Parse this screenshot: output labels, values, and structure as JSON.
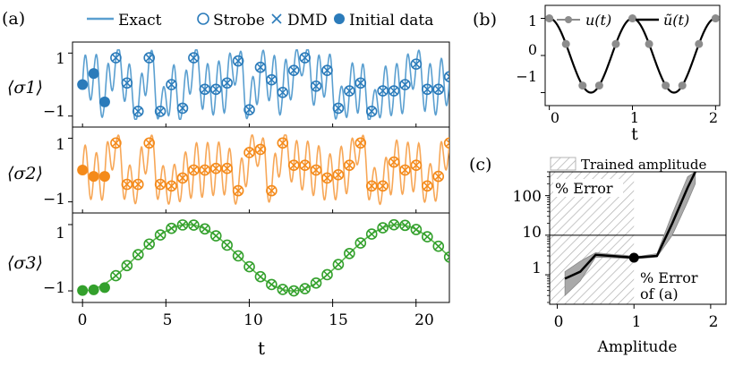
{
  "colors": {
    "sigma1": "#2b7bba",
    "sigma1_line": "#5a9fd0",
    "sigma2": "#f48a1a",
    "sigma2_line": "#f7a757",
    "sigma3": "#33a02c",
    "sigma3_line": "#5cb84d",
    "hatch": "#b4b4b4",
    "band": "#a9a9a9"
  },
  "chart_data": [
    {
      "type": "line",
      "panel_label": "(a)",
      "legend": {
        "placement": "top",
        "entries": [
          {
            "label": "Exact",
            "marker": "line"
          },
          {
            "label": "Strobe",
            "marker": "open-circle"
          },
          {
            "label": "DMD",
            "marker": "x"
          },
          {
            "label": "Initial data",
            "marker": "filled-circle"
          }
        ]
      },
      "xlabel": "t",
      "xlim": [
        -0.6,
        22
      ],
      "xticks": [
        "0",
        "5",
        "10",
        "15",
        "20"
      ],
      "subplots": [
        {
          "ylabel": "⟨σ1⟩",
          "ylim": [
            -1.35,
            1.35
          ],
          "yticks": [
            "1",
            "−1"
          ],
          "initial_data": {
            "t": [
              0,
              0.67,
              1.33
            ],
            "y": [
              0.0,
              0.35,
              -0.55
            ]
          },
          "strobe_t_start": 2.0,
          "strobe_dt": 0.667,
          "strobe_values": [
            0.85,
            0.05,
            -0.85,
            0.85,
            -0.85,
            0.0,
            -0.75,
            0.85,
            -0.15,
            -0.15,
            0.05,
            0.75,
            -0.8,
            0.55,
            0.15,
            -0.25,
            0.45,
            0.85,
            -0.05,
            0.45,
            -0.75,
            -0.2,
            0.05,
            -0.85,
            -0.2,
            -0.2,
            0.0,
            0.65,
            -0.15,
            -0.15,
            0.25,
            0.85,
            -0.65,
            0.75,
            -0.15,
            -0.15,
            0.0,
            -0.35,
            0.0,
            0.25,
            -0.35,
            0.85,
            -0.65,
            0.75,
            -0.1,
            0.05,
            -0.3,
            0.0,
            0.0,
            0.0,
            0.1,
            0.0,
            0.1,
            0.8
          ]
        },
        {
          "ylabel": "⟨σ2⟩",
          "ylim": [
            -1.35,
            1.35
          ],
          "yticks": [
            "1",
            "−1"
          ],
          "initial_data": {
            "t": [
              0,
              0.67,
              1.33
            ],
            "y": [
              0.0,
              -0.2,
              -0.2
            ]
          },
          "strobe_t_start": 2.0,
          "strobe_dt": 0.667,
          "strobe_values": [
            0.85,
            -0.45,
            -0.45,
            0.85,
            -0.45,
            -0.5,
            -0.25,
            0.0,
            0.0,
            0.05,
            0.05,
            -0.65,
            0.55,
            0.65,
            -0.65,
            0.85,
            0.15,
            0.15,
            0.0,
            -0.25,
            -0.15,
            0.15,
            0.85,
            -0.5,
            -0.5,
            0.25,
            0.0,
            0.15,
            -0.5,
            -0.2,
            0.85,
            -0.4,
            0.05,
            0.65,
            -0.4,
            0.25,
            0.0,
            -0.3,
            0.2,
            0.35,
            0.35,
            -0.2,
            0.55,
            0.25,
            -0.1,
            -0.4,
            0.3,
            0.6,
            0.1,
            0.7,
            0.2,
            -0.3,
            0.1,
            0.8
          ]
        },
        {
          "ylabel": "⟨σ3⟩",
          "ylim": [
            -1.35,
            1.35
          ],
          "yticks": [
            "1",
            "−1"
          ],
          "initial_data": {
            "t": [
              0,
              0.67,
              1.33
            ],
            "y": [
              -0.99,
              -0.97,
              -0.9
            ]
          },
          "trajectory": "y = -cos(2*pi*t/12.6)",
          "strobe_t_start": 2.0,
          "strobe_dt": 0.667
        }
      ]
    },
    {
      "type": "line",
      "panel_label": "(b)",
      "xlabel": "t",
      "xlim": [
        -0.05,
        2.05
      ],
      "ylim": [
        -1.35,
        1.35
      ],
      "xticks": [
        "0",
        "1",
        "2"
      ],
      "yticks": [
        "1",
        "0",
        "−1"
      ],
      "legend": {
        "placement": "top",
        "entries": [
          {
            "label": "u(t)",
            "marker": "gray-dots"
          },
          {
            "label": "ũ(t)",
            "marker": "black-line"
          }
        ]
      },
      "series": [
        {
          "name": "u(t)",
          "x": [
            0,
            0.2,
            0.4,
            0.6,
            0.8,
            1.0,
            1.2,
            1.4,
            1.6,
            1.8,
            2.0
          ],
          "values": [
            1.0,
            0.31,
            -0.81,
            -0.81,
            0.31,
            1.0,
            0.31,
            -0.81,
            -0.81,
            0.31,
            1.0
          ]
        },
        {
          "name": "ũ(t)",
          "function": "cos(2*pi*t)"
        }
      ]
    },
    {
      "type": "line",
      "panel_label": "(c)",
      "xlabel": "Amplitude",
      "xscale": "linear",
      "yscale": "log",
      "xlim": [
        -0.1,
        2.2
      ],
      "ylim": [
        0.18,
        400
      ],
      "xticks": [
        "0",
        "1",
        "2"
      ],
      "yticks": [
        "1",
        "10",
        "100"
      ],
      "hline": 10,
      "trained_region": [
        -0.1,
        1.0
      ],
      "annotations": [
        "Trained amplitude",
        "% Error",
        "% Error of (a)"
      ],
      "series": [
        {
          "name": "% Error",
          "x": [
            0.1,
            0.3,
            0.5,
            0.7,
            0.9,
            1.0,
            1.1,
            1.3,
            1.5,
            1.7,
            1.8
          ],
          "values": [
            0.8,
            1.2,
            3.2,
            3.0,
            2.8,
            2.7,
            2.8,
            3.0,
            20,
            160,
            400
          ],
          "band_low": [
            0.3,
            0.7,
            2.8,
            2.7,
            2.6,
            2.6,
            2.6,
            2.8,
            10,
            70,
            200
          ],
          "band_high": [
            1.2,
            2.2,
            3.6,
            3.3,
            3.1,
            2.9,
            3.0,
            3.4,
            35,
            300,
            400
          ]
        }
      ],
      "highlight_point": {
        "x": 1.0,
        "y": 2.7
      }
    }
  ]
}
